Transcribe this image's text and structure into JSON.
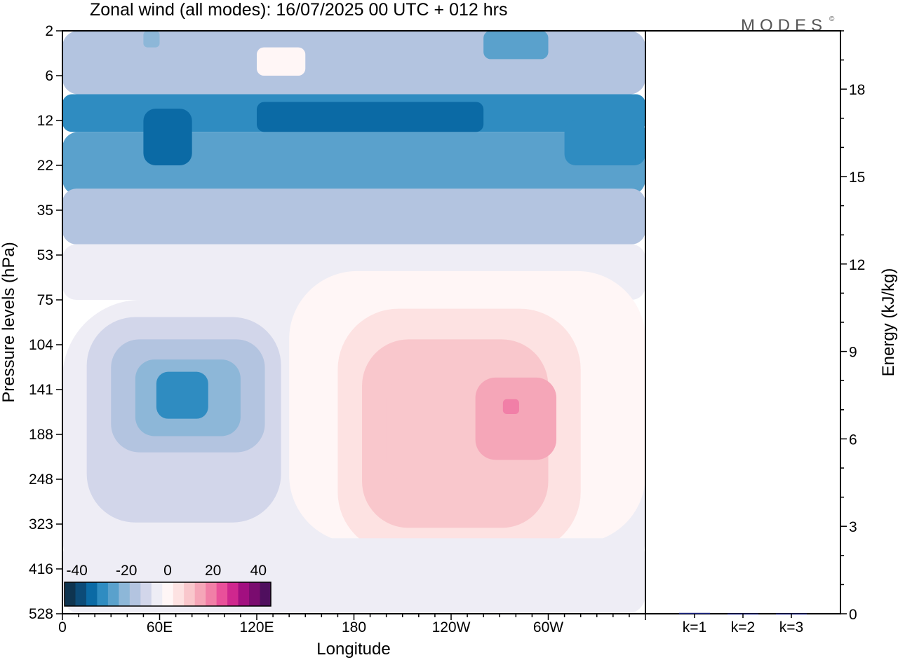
{
  "chart_data": [
    {
      "type": "heatmap",
      "title": "Zonal wind (all modes):  16/07/2025  00 UTC  + 012 hrs",
      "xlabel": "Longitude",
      "ylabel": "Pressure levels (hPa)",
      "x_tick_labels": [
        "0",
        "60E",
        "120E",
        "180",
        "120W",
        "60W"
      ],
      "x_tick_positions_deg": [
        0,
        60,
        120,
        180,
        240,
        300
      ],
      "y_tick_labels": [
        "2",
        "6",
        "12",
        "22",
        "35",
        "53",
        "75",
        "104",
        "141",
        "188",
        "248",
        "323",
        "416",
        "528"
      ],
      "colorbar": {
        "tick_labels": [
          "-40",
          "-20",
          "0",
          "20",
          "40"
        ],
        "colors": [
          "#0e3450",
          "#0c4b78",
          "#0b6aa5",
          "#2f8cc1",
          "#5aa1cc",
          "#8db7d8",
          "#b3c4e0",
          "#d2d6ea",
          "#eeedf5",
          "#fff6f6",
          "#fde2e2",
          "#f9c7cc",
          "#f5a6b8",
          "#f17fa7",
          "#e9509a",
          "#cf278e",
          "#a20f80",
          "#7a0c6f",
          "#4f0f5e"
        ]
      },
      "regions": [
        {
          "lon": [
            0,
            360
          ],
          "level": [
            2,
            8
          ],
          "value": -12
        },
        {
          "lon": [
            120,
            150
          ],
          "level": [
            3,
            6
          ],
          "value": 2
        },
        {
          "lon": [
            50,
            60
          ],
          "level": [
            2,
            3
          ],
          "value": -18
        },
        {
          "lon": [
            260,
            300
          ],
          "level": [
            2,
            4
          ],
          "value": -22
        },
        {
          "lon": [
            0,
            360
          ],
          "level": [
            8,
            14
          ],
          "value": -28
        },
        {
          "lon": [
            0,
            360
          ],
          "level": [
            14,
            30
          ],
          "value": -24
        },
        {
          "lon": [
            50,
            80
          ],
          "level": [
            10,
            22
          ],
          "value": -32
        },
        {
          "lon": [
            120,
            260
          ],
          "level": [
            9,
            14
          ],
          "value": -32
        },
        {
          "lon": [
            310,
            360
          ],
          "level": [
            12,
            22
          ],
          "value": -26
        },
        {
          "lon": [
            0,
            360
          ],
          "level": [
            28,
            48
          ],
          "value": -14
        },
        {
          "lon": [
            0,
            360
          ],
          "level": [
            48,
            75
          ],
          "value": -2
        },
        {
          "lon": [
            0,
            360
          ],
          "level": [
            75,
            528
          ],
          "value": -4
        },
        {
          "lon": [
            140,
            360
          ],
          "level": [
            60,
            360
          ],
          "value": 2
        },
        {
          "lon": [
            170,
            320
          ],
          "level": [
            80,
            380
          ],
          "value": 6
        },
        {
          "lon": [
            185,
            300
          ],
          "level": [
            100,
            330
          ],
          "value": 10
        },
        {
          "lon": [
            200,
            250
          ],
          "level": [
            130,
            250
          ],
          "value": 14
        },
        {
          "lon": [
            255,
            305
          ],
          "level": [
            130,
            220
          ],
          "value": 16
        },
        {
          "lon": [
            272,
            282
          ],
          "level": [
            150,
            165
          ],
          "value": 22
        },
        {
          "lon": [
            15,
            135
          ],
          "level": [
            85,
            320
          ],
          "value": -8
        },
        {
          "lon": [
            30,
            125
          ],
          "level": [
            100,
            210
          ],
          "value": -14
        },
        {
          "lon": [
            45,
            110
          ],
          "level": [
            115,
            190
          ],
          "value": -20
        },
        {
          "lon": [
            58,
            90
          ],
          "level": [
            125,
            170
          ],
          "value": -28
        },
        {
          "lon": [
            0,
            360
          ],
          "level": [
            350,
            528
          ],
          "value": -2
        }
      ]
    },
    {
      "type": "bar",
      "ylabel": "Energy (kJ/kg)",
      "categories": [
        "k=1",
        "k=2",
        "k=3"
      ],
      "values": [
        0.03,
        0.01,
        0.01
      ],
      "ylim": [
        0,
        20
      ],
      "y_tick_labels": [
        "0",
        "3",
        "6",
        "9",
        "12",
        "15",
        "18"
      ],
      "y_tick_values": [
        0,
        3,
        6,
        9,
        12,
        15,
        18
      ],
      "bar_color": "#1a237e"
    }
  ],
  "logo_text": "MODES",
  "logo_mark": "©"
}
